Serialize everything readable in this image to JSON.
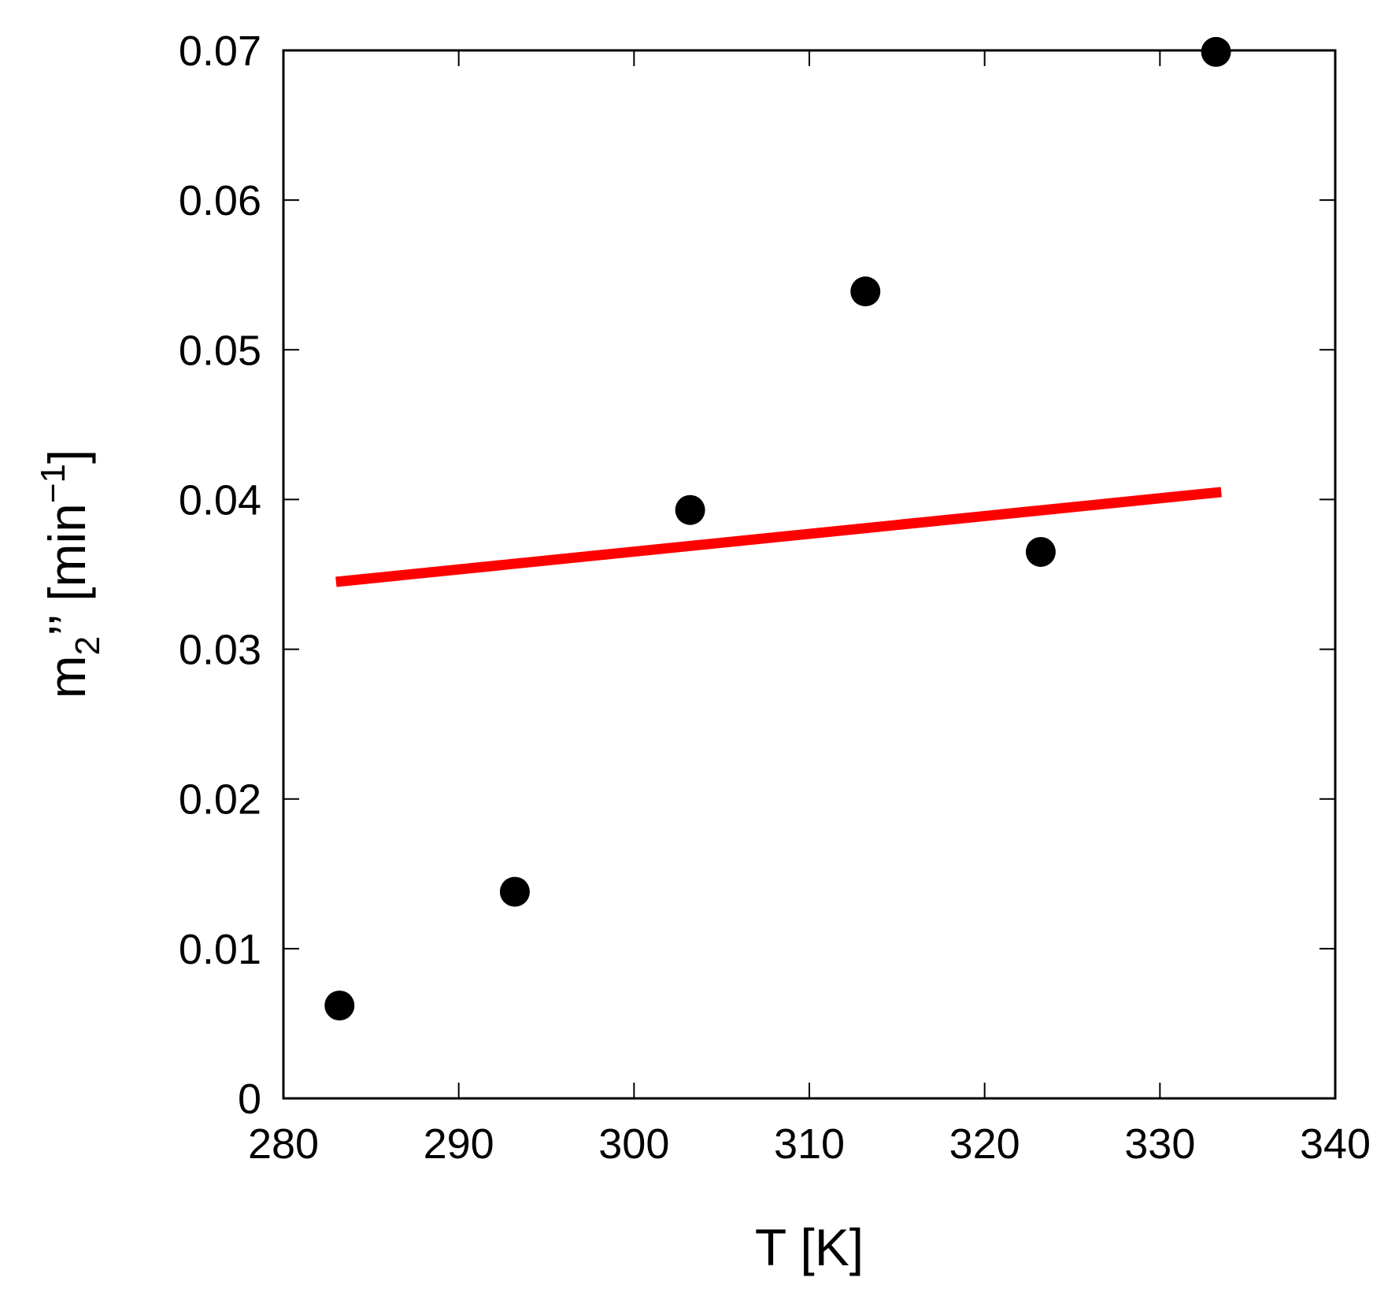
{
  "chart_data": {
    "type": "scatter",
    "x_label": "T [K]",
    "y_label": {
      "main": "m",
      "subscript": "2",
      "prime": "’’",
      "unit_open": " [min",
      "unit_sup": "−1",
      "unit_close": "]"
    },
    "xlim": [
      280,
      340
    ],
    "ylim": [
      0,
      0.07
    ],
    "x_ticks": [
      280,
      290,
      300,
      310,
      320,
      330,
      340
    ],
    "x_tick_labels": [
      "280",
      "290",
      "300",
      "310",
      "320",
      "330",
      "340"
    ],
    "y_ticks": [
      0,
      0.01,
      0.02,
      0.03,
      0.04,
      0.05,
      0.06,
      0.07
    ],
    "y_tick_labels": [
      "0",
      "0.01",
      "0.02",
      "0.03",
      "0.04",
      "0.05",
      "0.06",
      "0.07"
    ],
    "grid": false,
    "points": [
      {
        "x": 283.2,
        "y": 0.0062
      },
      {
        "x": 293.2,
        "y": 0.0138
      },
      {
        "x": 303.2,
        "y": 0.0393
      },
      {
        "x": 313.2,
        "y": 0.0539
      },
      {
        "x": 323.2,
        "y": 0.0365
      },
      {
        "x": 333.2,
        "y": 0.0699
      }
    ],
    "point_color": "#000000",
    "fit_line": {
      "x": [
        283.0,
        333.5
      ],
      "y": [
        0.0345,
        0.0405
      ],
      "color": "#ff0000"
    }
  }
}
